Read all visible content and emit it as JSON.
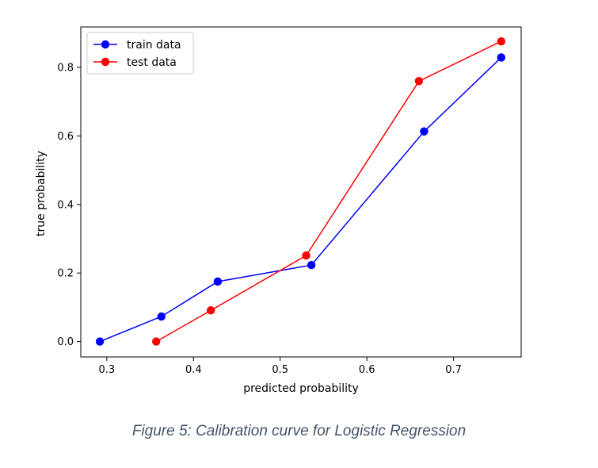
{
  "chart_data": {
    "type": "line",
    "title": "",
    "xlabel": "predicted probability",
    "ylabel": "true probability",
    "xlim": [
      0.27,
      0.778
    ],
    "ylim": [
      -0.045,
      0.918
    ],
    "xticks": [
      0.3,
      0.4,
      0.5,
      0.6,
      0.7
    ],
    "xtick_labels": [
      "0.3",
      "0.4",
      "0.5",
      "0.6",
      "0.7"
    ],
    "yticks": [
      0.0,
      0.2,
      0.4,
      0.6,
      0.8
    ],
    "ytick_labels": [
      "0.0",
      "0.2",
      "0.4",
      "0.6",
      "0.8"
    ],
    "grid": false,
    "legend_position": "top-left",
    "series": [
      {
        "name": "train data",
        "color": "#0000ff",
        "x": [
          0.292,
          0.363,
          0.428,
          0.536,
          0.666,
          0.755
        ],
        "y": [
          0.0,
          0.073,
          0.175,
          0.223,
          0.613,
          0.829
        ]
      },
      {
        "name": "test data",
        "color": "#ff0000",
        "x": [
          0.357,
          0.42,
          0.53,
          0.66,
          0.755
        ],
        "y": [
          0.0,
          0.091,
          0.251,
          0.76,
          0.876
        ]
      }
    ]
  },
  "caption": "Figure 5: Calibration curve for Logistic Regression"
}
